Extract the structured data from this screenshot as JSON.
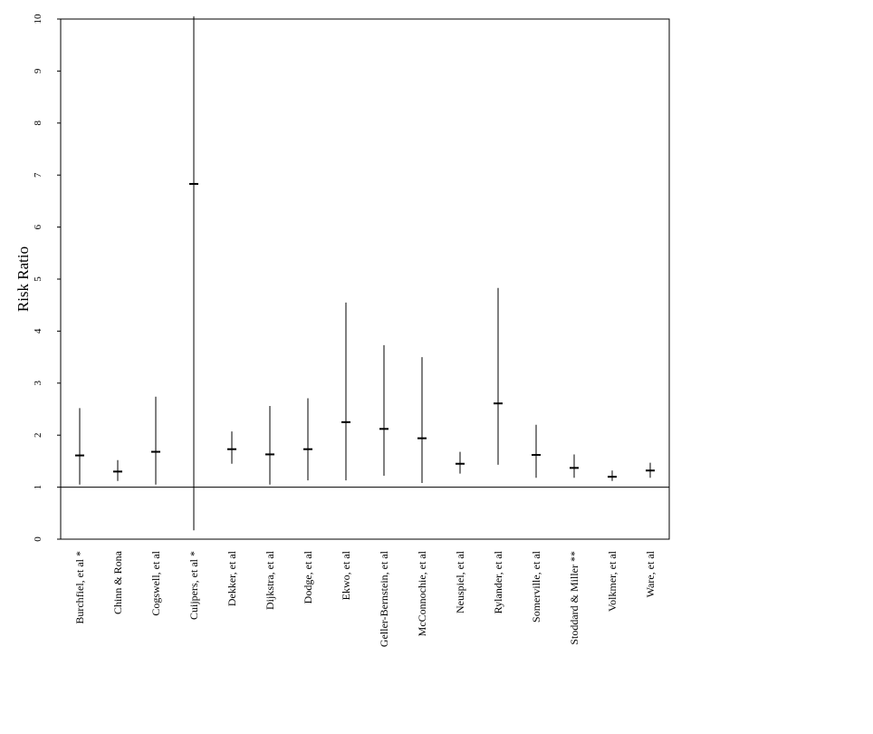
{
  "chart_data": {
    "type": "scatter",
    "ylabel": "Risk Ratio",
    "ylim": [
      0,
      10
    ],
    "yticks": [
      "0",
      "1",
      "2",
      "3",
      "4",
      "5",
      "6",
      "7",
      "8",
      "9",
      "10"
    ],
    "reference_line": 1,
    "grid": false,
    "categories": [
      "Burchfiel, et al *",
      "Chinn & Rona",
      "Cogswell, et al",
      "Cuijpers, et al *",
      "Dekker, et al",
      "Dijkstra, et al",
      "Dodge, et al",
      "Ekwo, et al",
      "Geller-Bernstein, et al",
      "McConnochie, et al",
      "Neuspiel, et al",
      "Rylander, et al",
      "Somerville, et al",
      "Stoddard & Miller **",
      "Volkmer, et al",
      "Ware, et al"
    ],
    "estimate": [
      1.61,
      1.3,
      1.68,
      6.83,
      1.73,
      1.63,
      1.73,
      2.25,
      2.12,
      1.94,
      1.45,
      2.61,
      1.62,
      1.37,
      1.2,
      1.32
    ],
    "lower": [
      1.05,
      1.12,
      1.05,
      0.17,
      1.45,
      1.05,
      1.13,
      1.13,
      1.22,
      1.08,
      1.26,
      1.43,
      1.18,
      1.18,
      1.12,
      1.18
    ],
    "upper": [
      2.52,
      1.52,
      2.74,
      10.05,
      2.07,
      2.56,
      2.71,
      4.55,
      3.73,
      3.5,
      1.68,
      4.83,
      2.2,
      1.63,
      1.32,
      1.47
    ]
  }
}
